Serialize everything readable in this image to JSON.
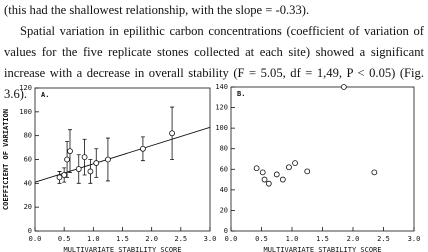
{
  "paragraphs": [
    "(this had the shallowest relationship, with the slope = -0.33).",
    "Spatial variation in epilithic carbon concentrations (coefficient of variation of values for the five replicate stones collected at each site) showed a significant increase with a decrease in overall stability (F = 5.05, df = 1,49, P < 0.05) (Fig. 3.6)."
  ],
  "chart_data": [
    {
      "type": "scatter",
      "panel": "A.",
      "ylabel": "COEFFICIENT OF VARIATION",
      "xlabel": "MULTIVARIATE STABILITY SCORE",
      "x": [
        0.42,
        0.5,
        0.55,
        0.6,
        0.75,
        0.85,
        0.95,
        1.05,
        1.25,
        1.85,
        2.35
      ],
      "values": [
        45,
        47,
        60,
        67,
        52,
        62,
        50,
        57,
        60,
        69,
        82
      ],
      "errors": [
        5,
        6,
        15,
        18,
        12,
        15,
        10,
        12,
        18,
        10,
        22
      ],
      "fit_line": {
        "x": [
          0,
          3
        ],
        "y": [
          41,
          87
        ]
      },
      "xlim": [
        0,
        3
      ],
      "ylim": [
        0,
        120
      ],
      "xticks": [
        {
          "value": 0,
          "label": "0.0"
        },
        {
          "value": 0.5,
          "label": "0.5"
        },
        {
          "value": 1,
          "label": "1.0"
        },
        {
          "value": 1.5,
          "label": "1.5"
        },
        {
          "value": 2,
          "label": "2.0"
        },
        {
          "value": 2.5,
          "label": "2.5"
        },
        {
          "value": 3,
          "label": "3.0"
        }
      ],
      "yticks": [
        0,
        20,
        40,
        60,
        80,
        100,
        120
      ]
    },
    {
      "type": "scatter",
      "panel": "B.",
      "xlabel": "MULTIVARIATE STABILITY SCORE",
      "x": [
        0.42,
        0.52,
        0.55,
        0.62,
        0.75,
        0.85,
        0.95,
        1.05,
        1.25,
        1.85,
        2.35
      ],
      "values": [
        61,
        57,
        50,
        46,
        55,
        50,
        62,
        66,
        58,
        140,
        57
      ],
      "xlim": [
        0,
        3
      ],
      "ylim": [
        0,
        140
      ],
      "xticks": [
        {
          "value": 0,
          "label": "0.0"
        },
        {
          "value": 0.5,
          "label": "0.5"
        },
        {
          "value": 1,
          "label": "1.0"
        },
        {
          "value": 1.5,
          "label": "1.5"
        },
        {
          "value": 2,
          "label": "2.0"
        },
        {
          "value": 2.5,
          "label": "2.5"
        },
        {
          "value": 3,
          "label": "3.0"
        }
      ],
      "yticks": [
        0,
        20,
        40,
        60,
        80,
        100,
        120,
        140
      ]
    }
  ]
}
